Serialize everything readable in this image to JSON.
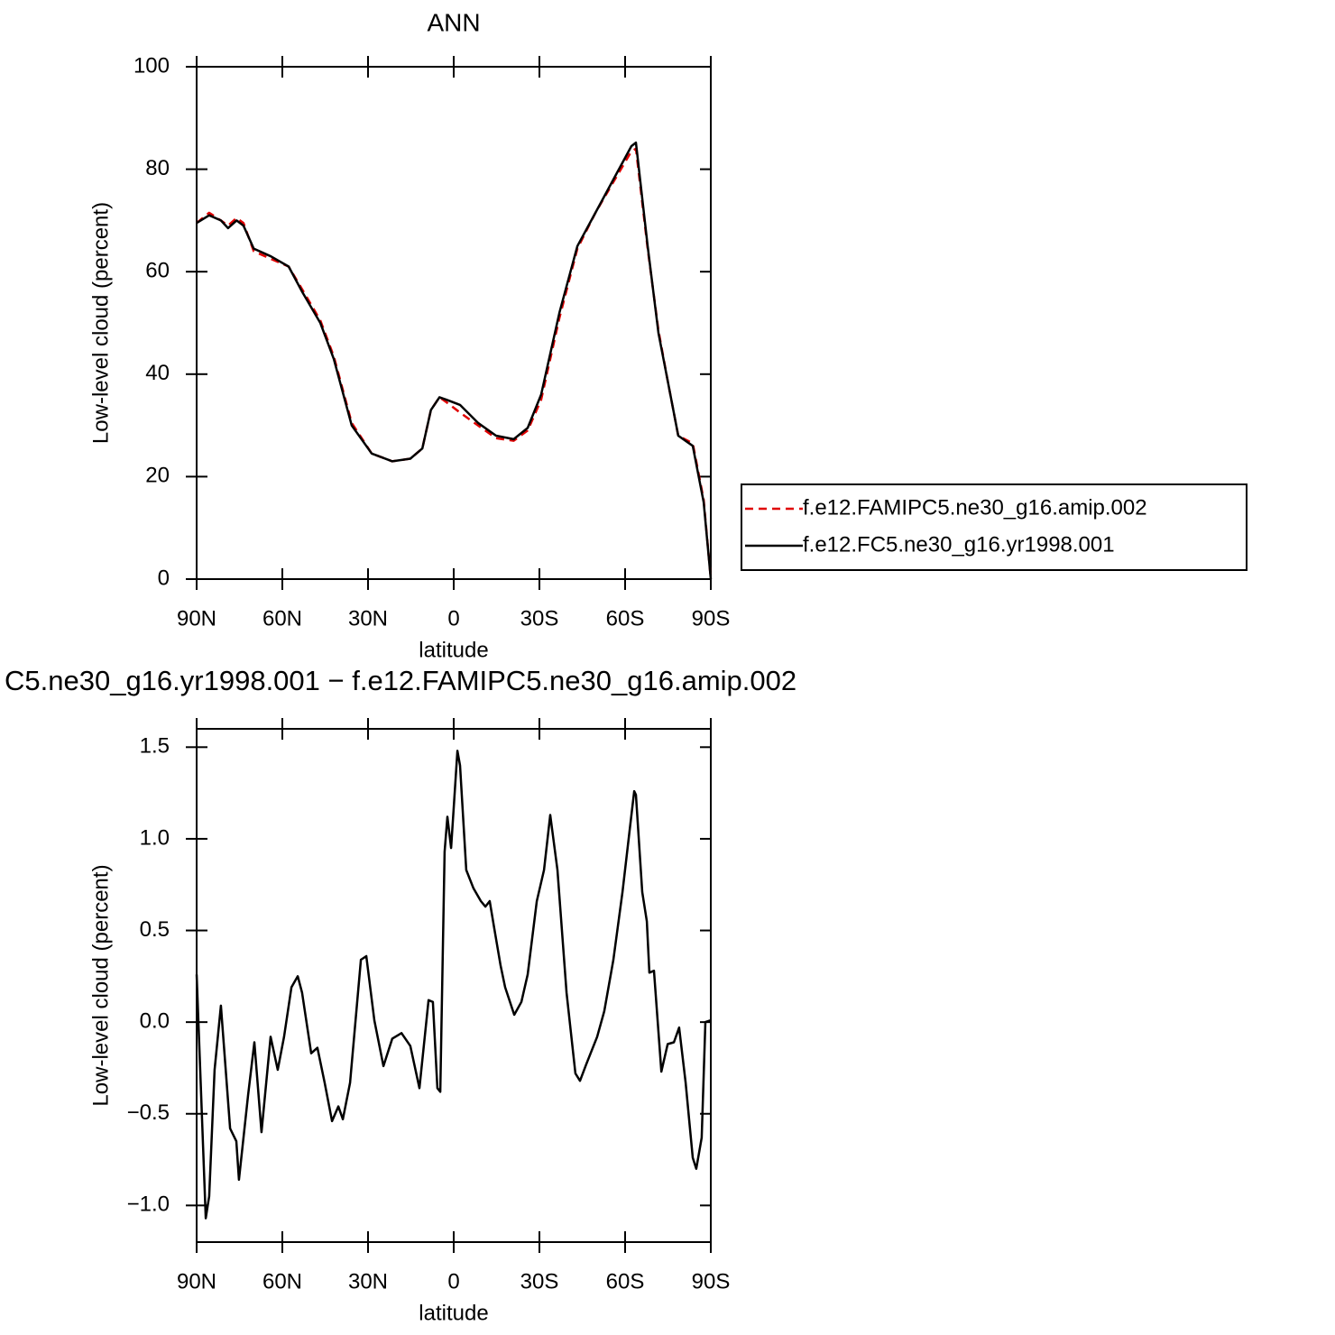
{
  "chart_data": [
    {
      "type": "line",
      "title": "ANN",
      "xlabel": "latitude",
      "ylabel": "Low-level cloud (percent)",
      "xlim": [
        90,
        -90
      ],
      "ylim": [
        0,
        100
      ],
      "xticks": [
        {
          "value": 90,
          "label": "90N"
        },
        {
          "value": 60,
          "label": "60N"
        },
        {
          "value": 30,
          "label": "30N"
        },
        0,
        {
          "value": -30,
          "label": "30S"
        },
        {
          "value": -60,
          "label": "60S"
        },
        {
          "value": -90,
          "label": "90S"
        }
      ],
      "yticks": [
        0,
        20,
        40,
        60,
        80,
        100
      ],
      "x": [
        90,
        85.6,
        81.5,
        79,
        76,
        73.6,
        70,
        64,
        57.8,
        53,
        46.7,
        42,
        35.7,
        28.7,
        21.5,
        15.2,
        11,
        8,
        5,
        2.5,
        -2.2,
        -8.5,
        -14.8,
        -21,
        -25.9,
        -30.6,
        -37,
        -43.3,
        -49.6,
        -55.9,
        -62.2,
        -63.8,
        -67.9,
        -71.7,
        -74.8,
        -78.6,
        -83.7,
        -87.5,
        -90
      ],
      "series": [
        {
          "name": "f.e12.FAMIPC5.ne30_g16.amip.002",
          "color": "#e00000",
          "dashed": true,
          "values": [
            69.5,
            71.5,
            70,
            69,
            70.5,
            69.5,
            64,
            62.5,
            61,
            56.5,
            50.5,
            43.5,
            30.5,
            24.5,
            23,
            23.5,
            25.5,
            33,
            35.5,
            34.5,
            32.5,
            30,
            27.5,
            27,
            29,
            35,
            51,
            64.5,
            71.5,
            77.5,
            83.5,
            84,
            64.5,
            48.5,
            39,
            28,
            26.5,
            15.5,
            0
          ]
        },
        {
          "name": "f.e12.FC5.ne30_g16.yr1998.001",
          "color": "#000000",
          "dashed": false,
          "values": [
            69.5,
            71,
            70,
            68.5,
            70,
            69,
            64.5,
            63,
            61,
            56,
            50,
            43,
            30,
            24.5,
            23,
            23.5,
            25.5,
            33,
            35.5,
            35,
            34,
            30.5,
            28,
            27.3,
            29.5,
            36,
            52,
            65,
            71.5,
            78,
            84.5,
            85.2,
            65,
            48,
            39,
            28,
            26,
            15,
            0
          ]
        }
      ]
    },
    {
      "type": "line",
      "title": "C5.ne30_g16.yr1998.001 − f.e12.FAMIPC5.ne30_g16.amip.002",
      "xlabel": "latitude",
      "ylabel": "Low-level cloud (percent)",
      "xlim": [
        90,
        -90
      ],
      "ylim": [
        -1.2,
        1.6
      ],
      "xticks": [
        {
          "value": 90,
          "label": "90N"
        },
        {
          "value": 60,
          "label": "60N"
        },
        {
          "value": 30,
          "label": "30N"
        },
        0,
        {
          "value": -30,
          "label": "30S"
        },
        {
          "value": -60,
          "label": "60S"
        },
        {
          "value": -90,
          "label": "90S"
        }
      ],
      "yticks": [
        {
          "value": -1.0,
          "label": "−1.0"
        },
        {
          "value": -0.5,
          "label": "−0.5"
        },
        {
          "value": 0.0,
          "label": "0.0"
        },
        0.5,
        {
          "value": 1.0,
          "label": "1.0"
        },
        1.5
      ],
      "x": [
        90,
        86.8,
        85.6,
        83.7,
        81.5,
        78.3,
        76.1,
        75.2,
        72.0,
        69.8,
        67.3,
        64.1,
        61.6,
        59.4,
        56.8,
        54.6,
        53.1,
        49.9,
        47.7,
        45.2,
        42.6,
        40.4,
        38.8,
        36.3,
        32.5,
        30.6,
        27.8,
        24.6,
        21.5,
        18.3,
        15.2,
        12.0,
        8.8,
        7.3,
        5.7,
        4.7,
        3.2,
        2.2,
        0.9,
        -1.3,
        -2.2,
        -4.4,
        -6.9,
        -9.5,
        -11.1,
        -12.6,
        -14.2,
        -16.4,
        -18.0,
        -21.2,
        -23.7,
        -25.9,
        -29.1,
        -31.6,
        -33.8,
        -36.3,
        -39.5,
        -42.6,
        -44.2,
        -46.4,
        -50.2,
        -52.7,
        -55.9,
        -59.1,
        -61.6,
        -63.2,
        -63.8,
        -66.0,
        -67.6,
        -68.5,
        -70.1,
        -72.7,
        -74.9,
        -77.1,
        -78.9,
        -81.2,
        -83.7,
        -84.9,
        -86.8,
        -88.1,
        -90
      ],
      "color": "#000000",
      "values": [
        0.26,
        -1.07,
        -0.95,
        -0.26,
        0.09,
        -0.58,
        -0.65,
        -0.86,
        -0.4,
        -0.11,
        -0.6,
        -0.08,
        -0.26,
        -0.08,
        0.19,
        0.25,
        0.16,
        -0.17,
        -0.14,
        -0.33,
        -0.54,
        -0.46,
        -0.53,
        -0.33,
        0.34,
        0.36,
        0.01,
        -0.24,
        -0.09,
        -0.06,
        -0.13,
        -0.36,
        0.12,
        0.11,
        -0.36,
        -0.38,
        0.93,
        1.12,
        0.95,
        1.48,
        1.4,
        0.83,
        0.73,
        0.66,
        0.63,
        0.66,
        0.51,
        0.31,
        0.19,
        0.04,
        0.11,
        0.26,
        0.66,
        0.83,
        1.13,
        0.83,
        0.16,
        -0.28,
        -0.32,
        -0.23,
        -0.08,
        0.06,
        0.34,
        0.71,
        1.05,
        1.26,
        1.24,
        0.71,
        0.55,
        0.27,
        0.28,
        -0.27,
        -0.12,
        -0.11,
        -0.03,
        -0.33,
        -0.74,
        -0.8,
        -0.63,
        0.0,
        0.01
      ]
    }
  ]
}
